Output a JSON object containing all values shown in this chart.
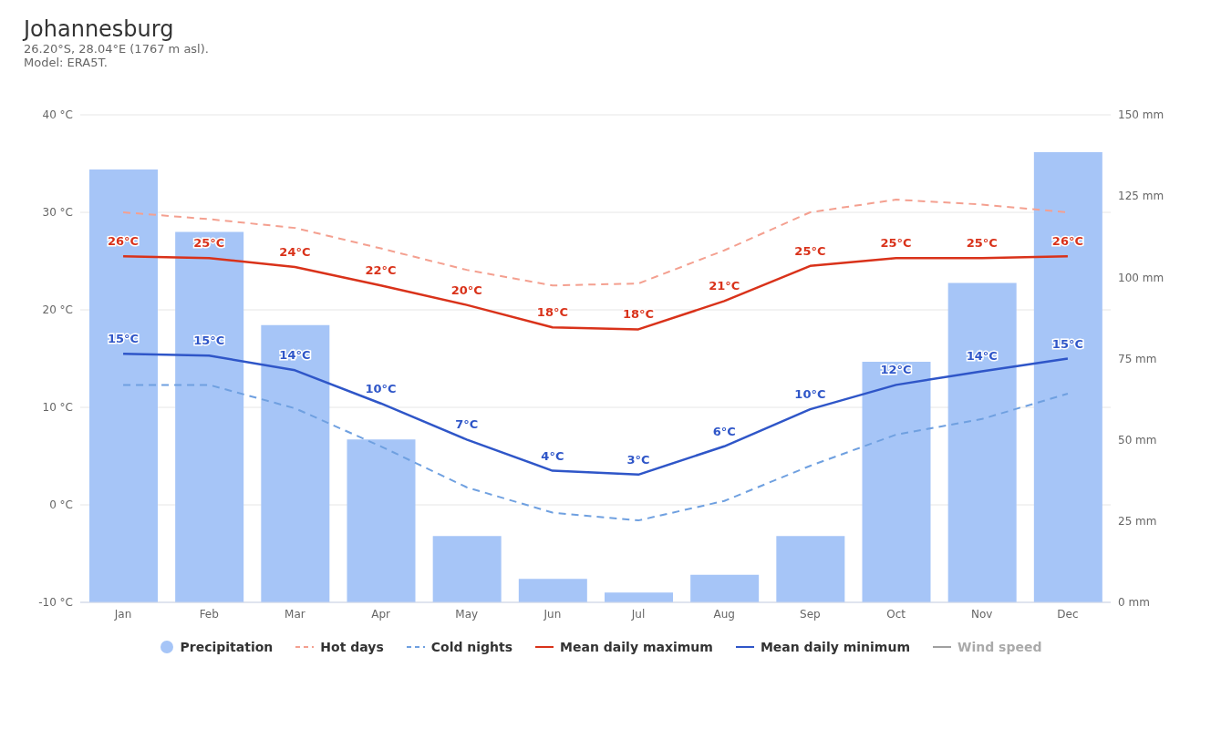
{
  "chart_data": {
    "type": "line",
    "title": "Johannesburg",
    "subtitle": "26.20°S, 28.04°E (1767 m asl).\nModel: ERA5T.",
    "categories": [
      "Jan",
      "Feb",
      "Mar",
      "Apr",
      "May",
      "Jun",
      "Jul",
      "Aug",
      "Sep",
      "Oct",
      "Nov",
      "Dec"
    ],
    "ylim": [
      -10,
      40
    ],
    "yticks": [
      {
        "value": -10,
        "label": "-10 °C"
      },
      {
        "value": 0,
        "label": "0 °C"
      },
      {
        "value": 10,
        "label": "10 °C"
      },
      {
        "value": 20,
        "label": "20 °C"
      },
      {
        "value": 30,
        "label": "30 °C"
      },
      {
        "value": 40,
        "label": "40 °C"
      }
    ],
    "y2lim": [
      0,
      150
    ],
    "y2ticks": [
      {
        "value": 0,
        "label": "0 mm"
      },
      {
        "value": 25,
        "label": "25 mm"
      },
      {
        "value": 50,
        "label": "50 mm"
      },
      {
        "value": 75,
        "label": "75 mm"
      },
      {
        "value": 100,
        "label": "100 mm"
      },
      {
        "value": 125,
        "label": "125 mm"
      },
      {
        "value": 150,
        "label": "150 mm"
      }
    ],
    "grid": "y",
    "legend": "bottom",
    "series": [
      {
        "name": "Precipitation",
        "type": "bar",
        "axis": "y2",
        "color": "#a6c5f7",
        "values": [
          133.2,
          114,
          85.3,
          50.1,
          20.4,
          7.2,
          3.0,
          8.5,
          20.4,
          74,
          98.3,
          138.5
        ]
      },
      {
        "name": "Hot days",
        "line_style": "dashed",
        "color": "#f4a090",
        "values": [
          30.0,
          29.3,
          28.4,
          26.3,
          24.1,
          22.5,
          22.7,
          26.1,
          30.0,
          31.3,
          30.8,
          30.0
        ]
      },
      {
        "name": "Cold nights",
        "line_style": "dashed",
        "color": "#6fa0e0",
        "values": [
          12.3,
          12.3,
          9.9,
          6.0,
          1.8,
          -0.8,
          -1.6,
          0.4,
          4.0,
          7.2,
          8.8,
          11.4
        ]
      },
      {
        "name": "Mean daily maximum",
        "line_style": "solid",
        "color": "#d9321a",
        "values": [
          25.5,
          25.3,
          24.4,
          22.5,
          20.5,
          18.2,
          18.0,
          20.9,
          24.5,
          25.3,
          25.3,
          25.5
        ],
        "value_labels": [
          "26°C",
          "25°C",
          "24°C",
          "22°C",
          "20°C",
          "18°C",
          "18°C",
          "21°C",
          "25°C",
          "25°C",
          "25°C",
          "26°C"
        ]
      },
      {
        "name": "Mean daily minimum",
        "line_style": "solid",
        "color": "#2f56c8",
        "values": [
          15.5,
          15.3,
          13.8,
          10.4,
          6.7,
          3.5,
          3.1,
          6.0,
          9.8,
          12.3,
          13.7,
          15.0
        ],
        "value_labels": [
          "15°C",
          "15°C",
          "14°C",
          "10°C",
          "7°C",
          "4°C",
          "3°C",
          "6°C",
          "10°C",
          "12°C",
          "14°C",
          "15°C"
        ]
      },
      {
        "name": "Wind speed",
        "line_style": "solid",
        "color": "#a0a0a0",
        "values": [
          null,
          null,
          null,
          null,
          null,
          null,
          null,
          null,
          null,
          null,
          null,
          null
        ]
      }
    ]
  }
}
